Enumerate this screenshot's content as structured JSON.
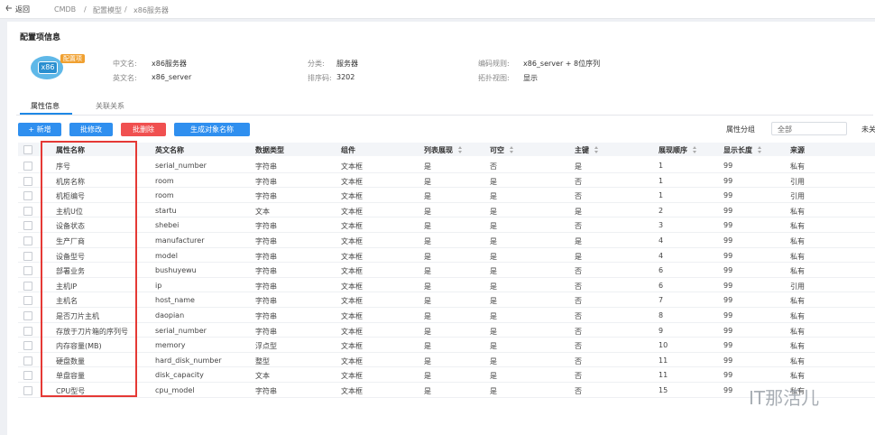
{
  "breadcrumb": {
    "back": "返回",
    "items": [
      "CMDB",
      "配置模型",
      "x86服务器"
    ],
    "separator": "/"
  },
  "section_title": "配置项信息",
  "icon": {
    "label": "x86",
    "badge": "配置项"
  },
  "info": [
    {
      "label": "中文名:",
      "value": "x86服务器"
    },
    {
      "label": "分类:",
      "value": "服务器"
    },
    {
      "label": "编码规则:",
      "value": "x86_server + 8位序列"
    },
    {
      "label": "英文名:",
      "value": "x86_server"
    },
    {
      "label": "排序码:",
      "value": "3202"
    },
    {
      "label": "拓扑视图:",
      "value": "显示"
    }
  ],
  "tabs": [
    "属性信息",
    "关联关系"
  ],
  "buttons": [
    "+ 新增",
    "批修改",
    "批删除",
    "生成对象名称"
  ],
  "filter": {
    "label": "属性分组",
    "value": "全部",
    "extra": "未关"
  },
  "table": {
    "headers": [
      "属性名称",
      "英文名称",
      "数据类型",
      "组件",
      "列表展现",
      "可空",
      "主键",
      "展现顺序",
      "显示长度",
      "来源"
    ],
    "sortable": [
      false,
      false,
      false,
      false,
      true,
      true,
      true,
      true,
      true,
      false
    ],
    "rows": [
      [
        "序号",
        "serial_number",
        "字符串",
        "文本框",
        "是",
        "否",
        "是",
        "1",
        "99",
        "私有"
      ],
      [
        "机房名称",
        "room",
        "字符串",
        "文本框",
        "是",
        "是",
        "否",
        "1",
        "99",
        "引用"
      ],
      [
        "机柜编号",
        "room",
        "字符串",
        "文本框",
        "是",
        "是",
        "否",
        "1",
        "99",
        "引用"
      ],
      [
        "主机U位",
        "startu",
        "文本",
        "文本框",
        "是",
        "是",
        "是",
        "2",
        "99",
        "私有"
      ],
      [
        "设备状态",
        "shebei",
        "字符串",
        "文本框",
        "是",
        "是",
        "否",
        "3",
        "99",
        "私有"
      ],
      [
        "生产厂商",
        "manufacturer",
        "字符串",
        "文本框",
        "是",
        "是",
        "是",
        "4",
        "99",
        "私有"
      ],
      [
        "设备型号",
        "model",
        "字符串",
        "文本框",
        "是",
        "是",
        "是",
        "4",
        "99",
        "私有"
      ],
      [
        "部署业务",
        "bushuyewu",
        "字符串",
        "文本框",
        "是",
        "是",
        "否",
        "6",
        "99",
        "私有"
      ],
      [
        "主机IP",
        "ip",
        "字符串",
        "文本框",
        "是",
        "是",
        "否",
        "6",
        "99",
        "引用"
      ],
      [
        "主机名",
        "host_name",
        "字符串",
        "文本框",
        "是",
        "是",
        "否",
        "7",
        "99",
        "私有"
      ],
      [
        "是否刀片主机",
        "daopian",
        "字符串",
        "文本框",
        "是",
        "是",
        "否",
        "8",
        "99",
        "私有"
      ],
      [
        "存放于刀片箱的序列号",
        "serial_number",
        "字符串",
        "文本框",
        "是",
        "是",
        "否",
        "9",
        "99",
        "私有"
      ],
      [
        "内存容量(MB)",
        "memory",
        "浮点型",
        "文本框",
        "是",
        "是",
        "否",
        "10",
        "99",
        "私有"
      ],
      [
        "硬盘数量",
        "hard_disk_number",
        "整型",
        "文本框",
        "是",
        "是",
        "否",
        "11",
        "99",
        "私有"
      ],
      [
        "单盘容量",
        "disk_capacity",
        "文本",
        "文本框",
        "是",
        "是",
        "否",
        "11",
        "99",
        "私有"
      ],
      [
        "CPU型号",
        "cpu_model",
        "字符串",
        "文本框",
        "是",
        "是",
        "否",
        "15",
        "99",
        "私有"
      ]
    ]
  },
  "watermark": "IT那活儿"
}
